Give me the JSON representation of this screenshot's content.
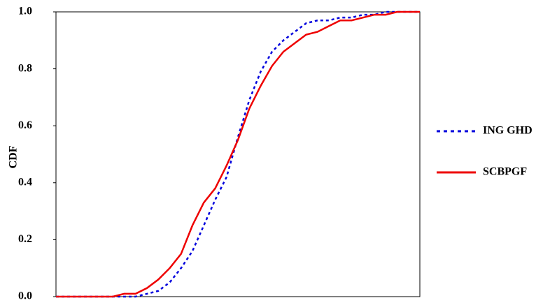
{
  "chart_data": {
    "type": "line",
    "y_label": "CDF",
    "categories": [
      null,
      null,
      null,
      null,
      null,
      null,
      null,
      null,
      null,
      null,
      null,
      null,
      null,
      null,
      null,
      null,
      null,
      null,
      null,
      null,
      null,
      null,
      null,
      null,
      null,
      null,
      null,
      null,
      null,
      null,
      null,
      null,
      null
    ],
    "series": [
      {
        "name": "ING GHD",
        "color": "#0000dd",
        "dash": true,
        "values": [
          0,
          0,
          0,
          0,
          0,
          0,
          0,
          0,
          0.01,
          0.02,
          0.05,
          0.1,
          0.16,
          0.25,
          0.34,
          0.42,
          0.56,
          0.69,
          0.79,
          0.86,
          0.9,
          0.93,
          0.96,
          0.97,
          0.97,
          0.98,
          0.98,
          0.99,
          0.99,
          1.0,
          1.0,
          1.0,
          1.0
        ]
      },
      {
        "name": "SCBPGF",
        "color": "#ee0000",
        "dash": false,
        "values": [
          0,
          0,
          0,
          0,
          0,
          0,
          0.01,
          0.01,
          0.03,
          0.06,
          0.1,
          0.15,
          0.25,
          0.33,
          0.38,
          0.46,
          0.55,
          0.66,
          0.74,
          0.81,
          0.86,
          0.89,
          0.92,
          0.93,
          0.95,
          0.97,
          0.97,
          0.98,
          0.99,
          0.99,
          1.0,
          1.0,
          1.0
        ]
      }
    ],
    "ylim": [
      0,
      1
    ],
    "yticks": [
      {
        "value": 0,
        "label": "0.0"
      },
      {
        "value": 0.2,
        "label": "0.2"
      },
      {
        "value": 0.4,
        "label": "0.4"
      },
      {
        "value": 0.6,
        "label": "0.6"
      },
      {
        "value": 0.8,
        "label": "0.8"
      },
      {
        "value": 1,
        "label": "1.0"
      }
    ],
    "legend": "right"
  }
}
